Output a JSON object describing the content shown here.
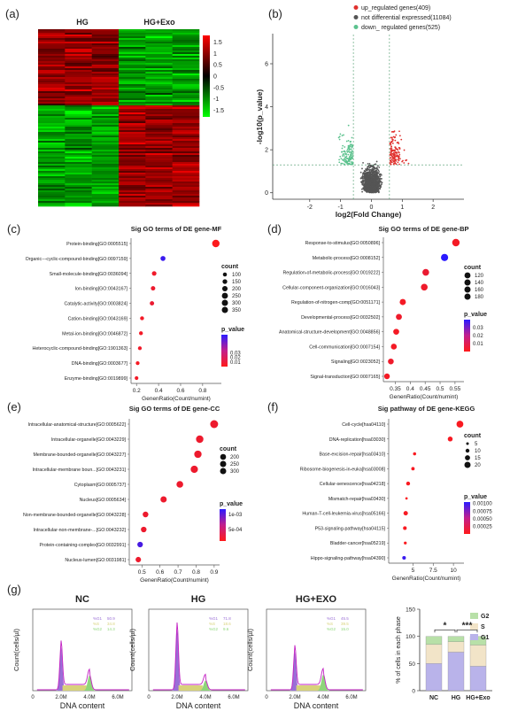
{
  "panels": {
    "a": "(a)",
    "b": "(b)",
    "c": "(c)",
    "d": "(d)",
    "e": "(e)",
    "f": "(f)",
    "g": "(g)"
  },
  "chart_data": [
    {
      "type": "heatmap",
      "panel": "a",
      "column_groups": [
        "HG",
        "HG+Exo"
      ],
      "colorbar_ticks": [
        1.5,
        1,
        0.5,
        0,
        -0.5,
        -1,
        -1.5
      ],
      "colorbar_tick_labels": [
        "1.5",
        "1",
        "0.5",
        "0",
        "-0.5",
        "-1",
        "-1.5"
      ],
      "colors": {
        "high": "#ff0000",
        "mid": "#000000",
        "low": "#00ff00"
      },
      "upper_block_pattern": {
        "HG": "red",
        "HG+Exo": "green"
      },
      "lower_block_pattern": {
        "HG": "green",
        "HG+Exo": "red"
      }
    },
    {
      "type": "scatter",
      "panel": "b",
      "xlabel": "log2(Fold Change)",
      "ylabel": "-log10(p_value)",
      "xlim": [
        -3.2,
        3.0
      ],
      "ylim": [
        -0.3,
        7.4
      ],
      "xticks": [
        -2,
        -1,
        0,
        1,
        2
      ],
      "yticks": [
        0,
        2,
        4,
        6
      ],
      "thresholds": {
        "log2fc": [
          -0.585,
          0.585
        ],
        "neglog10p": 1.3
      },
      "legend": [
        {
          "label": "up_regulated genes(409)",
          "color": "#e0302d"
        },
        {
          "label": "not differential expressed(11084)",
          "color": "#555555"
        },
        {
          "label": "down_ regulated genes(525)",
          "color": "#5cc28e"
        }
      ]
    },
    {
      "type": "scatter",
      "panel": "c",
      "title": "Sig GO terms of DE gene-MF",
      "xlabel": "GenenRatio(Count/numint)",
      "xlim": [
        0.15,
        0.97
      ],
      "xticks": [
        0.2,
        0.4,
        0.6,
        0.8
      ],
      "categories": [
        "Protein-binding[GO:0005515]",
        "Organic---cyclic-compound-binding[GO:0097159]",
        "Small-molecule-binding[GO:0036094]",
        "Ion-binding[GO:0043167]",
        "Catalytic-activity[GO:0003824]",
        "Cation-binding[GO:0043169]",
        "Metal-ion-binding[GO:0046872]",
        "Heterocyclic-compound-binding[GO:1901363]",
        "DNA-binding[GO:0003677]",
        "Enzyme-binding[GO:0019899]"
      ],
      "x": [
        0.92,
        0.44,
        0.36,
        0.35,
        0.34,
        0.25,
        0.24,
        0.23,
        0.21,
        0.2
      ],
      "count": [
        350,
        170,
        140,
        130,
        125,
        95,
        90,
        85,
        80,
        75
      ],
      "p_value": [
        0.001,
        0.065,
        0.005,
        0.006,
        0.007,
        0.004,
        0.004,
        0.005,
        0.003,
        0.004
      ],
      "size_legend": {
        "title": "count",
        "values": [
          100,
          150,
          200,
          250,
          300,
          350
        ]
      },
      "color_legend": {
        "title": "p_value",
        "ticks": [
          0.03,
          0.02,
          0.01
        ],
        "range": [
          0.0,
          0.07
        ]
      }
    },
    {
      "type": "scatter",
      "panel": "d",
      "title": "Sig GO terms of DE gene-BP",
      "xlabel": "GenenRatio(Count/numint)",
      "xlim": [
        0.31,
        0.58
      ],
      "xticks": [
        0.35,
        0.4,
        0.45,
        0.5,
        0.55
      ],
      "categories": [
        "Response-to-stimulus[GO:0050896]",
        "Metabolic-process[GO:0008152]",
        "Regulation-of-metabolic-process[GO:0019222]",
        "Cellular-component-organization[GO:0016043]",
        "Regulation-of-nitrogen-comp[GO:0051171]",
        "Developmental-process[GO:0032502]",
        "Anatomical-structure-development[GO:0048856]",
        "Cell-communication[GO:0007154]",
        "Signaling[GO:0023052]",
        "Signal-transduction[GO:0007165]"
      ],
      "x": [
        0.553,
        0.515,
        0.452,
        0.447,
        0.375,
        0.362,
        0.353,
        0.345,
        0.335,
        0.322
      ],
      "count": [
        180,
        170,
        150,
        148,
        125,
        120,
        115,
        112,
        110,
        105
      ],
      "p_value": [
        0.002,
        0.04,
        0.004,
        0.003,
        0.002,
        0.003,
        0.002,
        0.002,
        0.003,
        0.002
      ],
      "size_legend": {
        "title": "count",
        "values": [
          120,
          140,
          160,
          180
        ]
      },
      "color_legend": {
        "title": "p_value",
        "ticks": [
          0.03,
          0.02,
          0.01
        ],
        "range": [
          0.0,
          0.04
        ]
      }
    },
    {
      "type": "scatter",
      "panel": "e",
      "title": "Sig GO terms of DE gene-CC",
      "xlabel": "GenenRatio(Count/numint)",
      "xlim": [
        0.43,
        0.93
      ],
      "xticks": [
        0.5,
        0.6,
        0.7,
        0.8,
        0.9
      ],
      "categories": [
        "Intracellular-anatomical-structure[GO:0005622]",
        "Intracellular-organelle[GO:0043229]",
        "Membrane-bounded-organelle[GO:0043227]",
        "Intracellular-membrane boun...[GO:0043231]",
        "Cytoplasm[GO:0005737]",
        "Nucleus[GO:0005634]",
        "Non-membrane-bounded-organelle[GO:0043228]",
        "Intracellular-non-membrane-...[GO:0043232]",
        "Protein-containing-complex[GO:0032991]",
        "Nucleus-lumen[GO:0031981]"
      ],
      "x": [
        0.9,
        0.82,
        0.81,
        0.79,
        0.71,
        0.62,
        0.52,
        0.51,
        0.49,
        0.48
      ],
      "count": [
        330,
        300,
        295,
        290,
        255,
        225,
        190,
        185,
        180,
        175
      ],
      "p_value": [
        0.0001,
        0.0001,
        0.0001,
        0.0001,
        0.0001,
        0.0001,
        0.0001,
        0.0001,
        0.00105,
        0.0001
      ],
      "size_legend": {
        "title": "count",
        "values": [
          200,
          250,
          300
        ]
      },
      "color_legend": {
        "title": "p_value",
        "tick_labels": [
          "1e-03",
          "5e-04"
        ],
        "range": [
          0.0,
          0.0012
        ]
      }
    },
    {
      "type": "scatter",
      "panel": "f",
      "title": "Sig pathway of DE gene-KEGG",
      "xlabel": "GenenRatio(Count/numint)",
      "xlim": [
        2.0,
        11.3
      ],
      "xticks": [
        5.0,
        7.5,
        10.0
      ],
      "categories": [
        "Cell-cycle[hsa04110]",
        "DNA-replication[hsa03030]",
        "Base-excision-repair[hsa03410]",
        "Ribosome-biogenesis-in-euka[hsa03008]",
        "Cellular-senescence[hsa04218]",
        "Mismatch-repair[hsa03430]",
        "Human-T-cell-leukemia-virus[hsa05166]",
        "P53-signaling-pathway[hsa04115]",
        "Bladder-cancer[hsa05219]",
        "Hippo-signaling-pathway[hsa04390]"
      ],
      "x": [
        10.8,
        9.6,
        5.2,
        5.0,
        4.4,
        4.2,
        4.1,
        4.0,
        4.05,
        3.9
      ],
      "count": [
        22,
        14,
        7,
        8,
        10,
        4,
        12,
        9,
        6,
        9
      ],
      "p_value": [
        3e-05,
        4e-05,
        3e-05,
        4e-05,
        3e-05,
        2e-05,
        4e-05,
        3e-05,
        2e-05,
        0.00098
      ],
      "size_legend": {
        "title": "count",
        "values": [
          5,
          10,
          15,
          20
        ]
      },
      "color_legend": {
        "title": "p_value",
        "ticks": [
          0.001,
          0.00075,
          0.0005,
          0.00025
        ],
        "tick_labels": [
          "0.00100",
          "0.00075",
          "0.00050",
          "0.00025"
        ],
        "range": [
          0.0,
          0.00105
        ]
      }
    },
    {
      "type": "area",
      "panel": "g",
      "series_groups": [
        "NC",
        "HG",
        "HG+EXO"
      ],
      "xlabel": "DNA content",
      "ylabel": "Count(cells/µl)",
      "xticks": [
        "0",
        "2.0M",
        "4.0M",
        "6.0M"
      ],
      "legend_labels": [
        "%G1",
        "%S",
        "%G2"
      ],
      "phase_colors": {
        "G1": "#9a6fd6",
        "S": "#d8d27a",
        "G2": "#8ed67a"
      },
      "phase_values": [
        {
          "G1": 50.9,
          "S": 34.8,
          "G2": 14.3
        },
        {
          "G1": 71.8,
          "S": 18.6,
          "G2": 9.6
        },
        {
          "G1": 45.5,
          "S": 39.5,
          "G2": 15.0
        }
      ],
      "phase_value_labels": [
        {
          "G1": "50.9",
          "S": "34.8",
          "G2": "14.3"
        },
        {
          "G1": "71.8",
          "S": "18.6",
          "G2": "9.6"
        },
        {
          "G1": "45.5",
          "S": "39.5",
          "G2": "15.0"
        }
      ]
    },
    {
      "type": "bar",
      "panel": "g",
      "stacked": true,
      "categories": [
        "NC",
        "HG",
        "HG+Exo"
      ],
      "ylabel": "% of cells in each phase",
      "ylim": [
        0,
        150
      ],
      "yticks": [
        0,
        50,
        100,
        150
      ],
      "series": [
        {
          "name": "G1",
          "values": [
            50,
            71,
            45
          ],
          "color": "#b9b3ea"
        },
        {
          "name": "S",
          "values": [
            35,
            19,
            39
          ],
          "color": "#f2e4c8"
        },
        {
          "name": "G2",
          "values": [
            15,
            10,
            16
          ],
          "color": "#b8e0a8"
        }
      ],
      "significance": [
        {
          "between": [
            "NC",
            "HG"
          ],
          "label": "*"
        },
        {
          "between": [
            "HG",
            "HG+Exo"
          ],
          "label": "***"
        }
      ]
    }
  ]
}
